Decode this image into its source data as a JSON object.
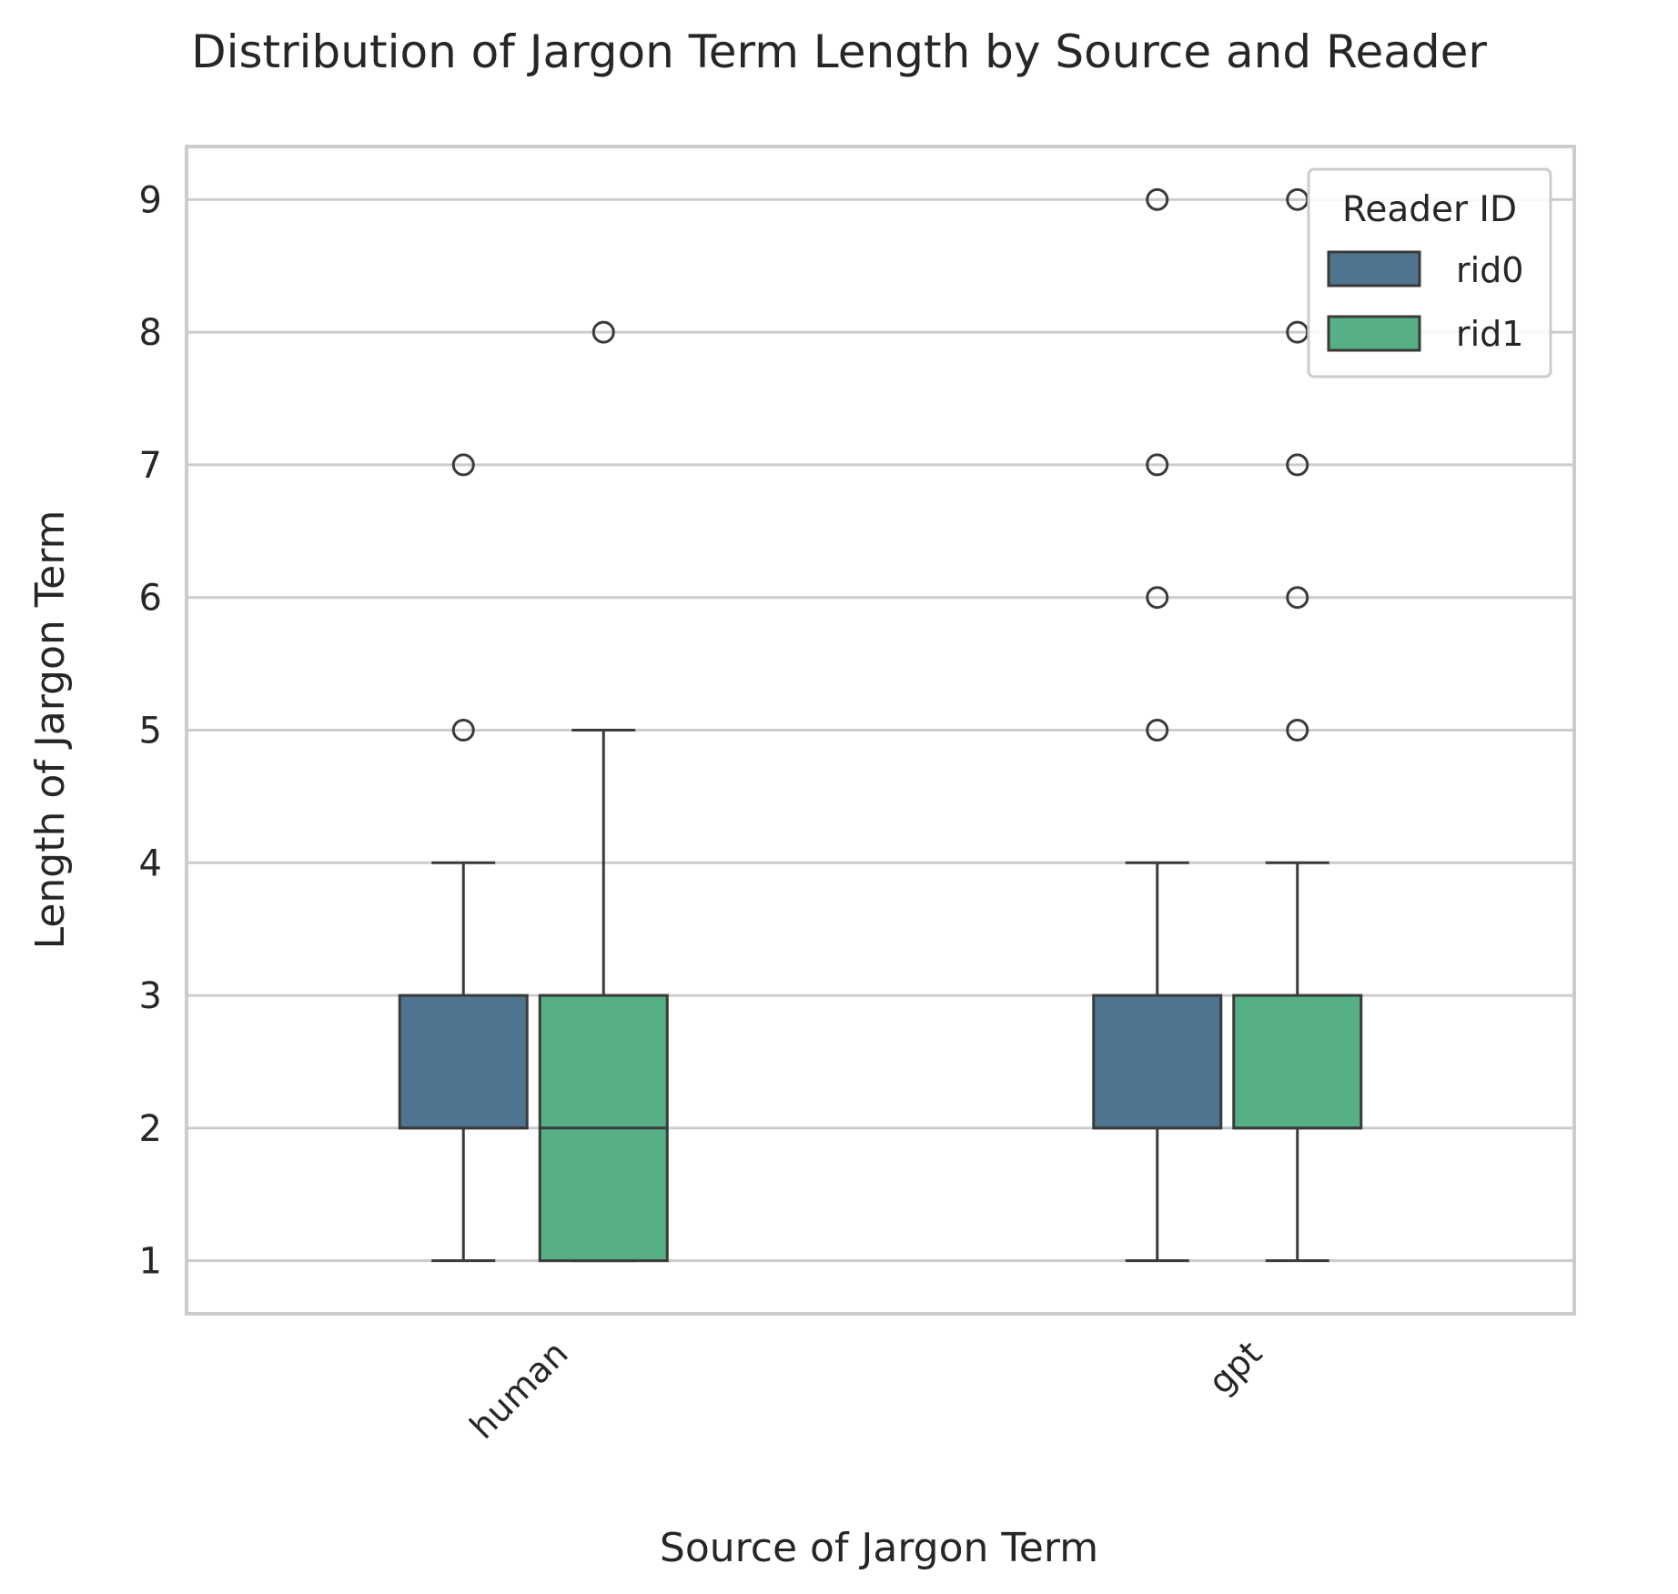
{
  "chart_data": {
    "type": "box",
    "title": "Distribution of Jargon Term Length by Source and Reader",
    "xlabel": "Source of Jargon Term",
    "ylabel": "Length of Jargon Term",
    "categories": [
      "human",
      "gpt"
    ],
    "ylim": [
      0.6,
      9.4
    ],
    "yticks": [
      "1",
      "2",
      "3",
      "4",
      "5",
      "6",
      "7",
      "8",
      "9"
    ],
    "grid": "horizontal",
    "legend": {
      "title": "Reader ID",
      "position": "top-right",
      "entries": [
        "rid0",
        "rid1"
      ]
    },
    "colors": {
      "rid0": "#4e748f",
      "rid1": "#57b085",
      "line": "#3a3a3a",
      "grid": "#cccccc",
      "frame": "#cccccc"
    },
    "series": [
      {
        "name": "rid0",
        "boxes": [
          {
            "category": "human",
            "whisker_low": 1,
            "q1": 2,
            "median": 2,
            "q3": 3,
            "whisker_high": 4,
            "outliers": [
              5,
              7
            ]
          },
          {
            "category": "gpt",
            "whisker_low": 1,
            "q1": 2,
            "median": 2,
            "q3": 3,
            "whisker_high": 4,
            "outliers": [
              5,
              6,
              7,
              9
            ]
          }
        ]
      },
      {
        "name": "rid1",
        "boxes": [
          {
            "category": "human",
            "whisker_low": 1,
            "q1": 1,
            "median": 2,
            "q3": 3,
            "whisker_high": 5,
            "outliers": [
              8
            ]
          },
          {
            "category": "gpt",
            "whisker_low": 1,
            "q1": 2,
            "median": 2,
            "q3": 3,
            "whisker_high": 4,
            "outliers": [
              5,
              6,
              7,
              8,
              9
            ]
          }
        ]
      }
    ]
  }
}
